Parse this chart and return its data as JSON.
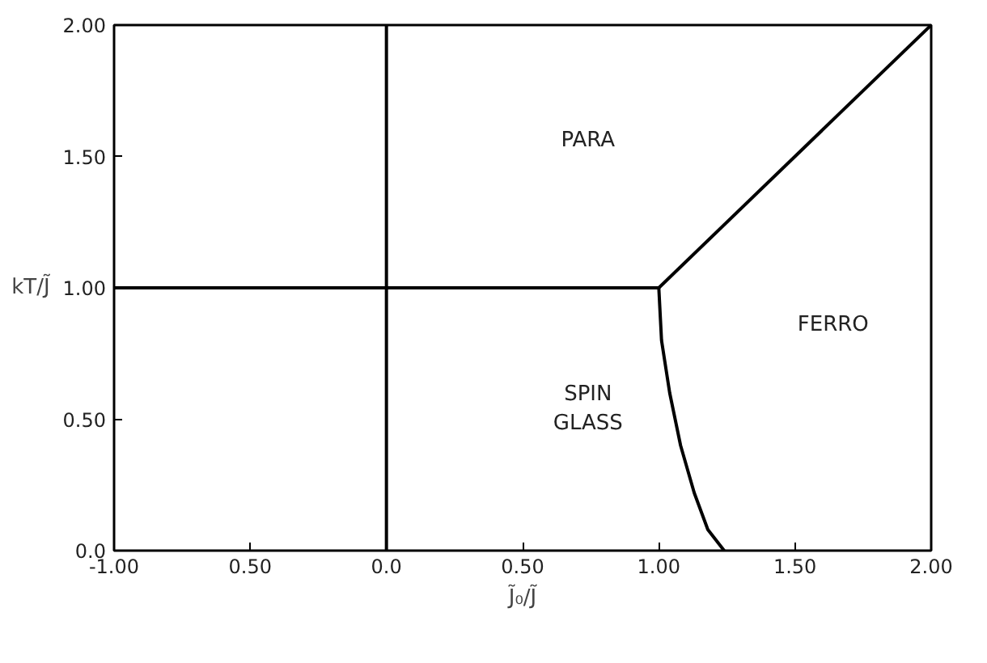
{
  "chart_data": {
    "type": "line",
    "xlabel": "J̃₀/J̃",
    "ylabel": "kT/J̃",
    "xlim": [
      -1,
      2
    ],
    "ylim": [
      0,
      2
    ],
    "xticks": [
      {
        "value": -1,
        "label": "-1.00"
      },
      {
        "value": -0.5,
        "label": "0.50"
      },
      {
        "value": 0,
        "label": "0.0"
      },
      {
        "value": 0.5,
        "label": "0.50"
      },
      {
        "value": 1,
        "label": "1.00"
      },
      {
        "value": 1.5,
        "label": "1.50"
      },
      {
        "value": 2,
        "label": "2.00"
      }
    ],
    "yticks": [
      {
        "value": 0,
        "label": "0.0"
      },
      {
        "value": 0.5,
        "label": "0.50"
      },
      {
        "value": 1,
        "label": "1.00"
      },
      {
        "value": 1.5,
        "label": "1.50"
      },
      {
        "value": 2,
        "label": "2.00"
      }
    ],
    "series": [
      {
        "color": "#000000",
        "x": [
          -1,
          1
        ],
        "values": [
          1,
          1
        ]
      },
      {
        "color": "#000000",
        "x": [
          0,
          0
        ],
        "values": [
          0,
          2
        ]
      },
      {
        "color": "#000000",
        "x": [
          1,
          2
        ],
        "values": [
          1,
          2
        ]
      },
      {
        "color": "#000000",
        "x": [
          1,
          1.01,
          1.04,
          1.08,
          1.13,
          1.18,
          1.24
        ],
        "values": [
          1,
          0.8,
          0.6,
          0.4,
          0.22,
          0.08,
          0
        ]
      }
    ],
    "annotations": [
      "PARA",
      "FERRO",
      "SPIN\nGLASS"
    ],
    "grid": false,
    "marker": "none",
    "line_style": "solid"
  }
}
